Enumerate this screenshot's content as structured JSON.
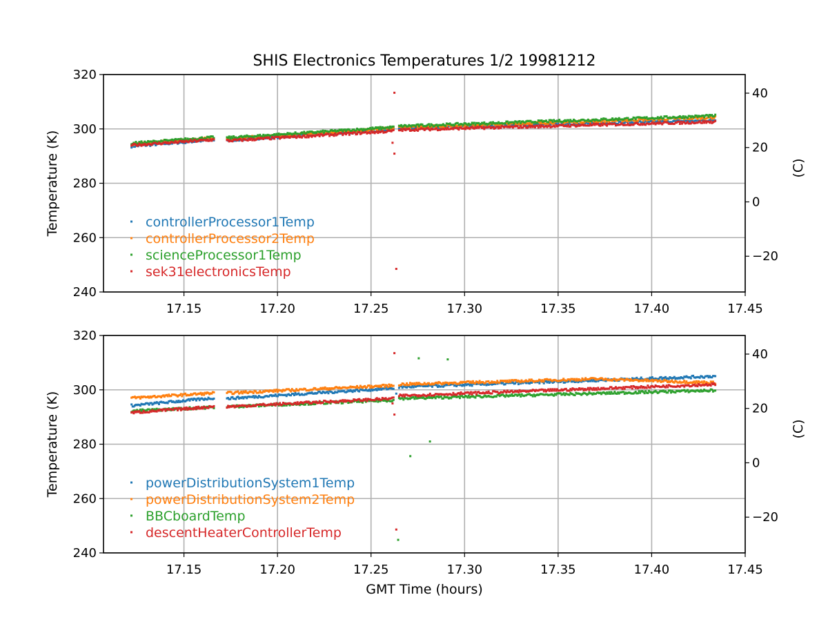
{
  "title": "SHIS Electronics Temperatures 1/2 19981212",
  "xlabel": "GMT Time (hours)",
  "chart_data": [
    {
      "type": "scatter",
      "ylabel": "Temperature (K)",
      "y2label": "(C)",
      "xlim": [
        17.107,
        17.45
      ],
      "ylim": [
        240,
        320
      ],
      "y2lim_offset_K_to_C": -273.15,
      "xticks": [
        "17.15",
        "17.20",
        "17.25",
        "17.30",
        "17.35",
        "17.40",
        "17.45"
      ],
      "xtick_values": [
        17.15,
        17.2,
        17.25,
        17.3,
        17.35,
        17.4,
        17.45
      ],
      "yticks": [
        "240",
        "260",
        "280",
        "300",
        "320"
      ],
      "ytick_values": [
        240,
        260,
        280,
        300,
        320
      ],
      "y2ticks": [
        "−20",
        "0",
        "20",
        "40"
      ],
      "y2tick_values": [
        -20,
        0,
        20,
        40
      ],
      "grid": true,
      "legend_position": "center-left",
      "series": [
        {
          "name": "controllerProcessor1Temp",
          "color": "#1f77b4",
          "segments": [
            [
              [
                17.122,
                293.6
              ],
              [
                17.166,
                296.0
              ]
            ],
            [
              [
                17.173,
                295.8
              ],
              [
                17.262,
                299.8
              ]
            ],
            [
              [
                17.265,
                300.2
              ],
              [
                17.434,
                303.2
              ]
            ]
          ],
          "outliers": []
        },
        {
          "name": "controllerProcessor2Temp",
          "color": "#ff7f0e",
          "segments": [
            [
              [
                17.122,
                294.4
              ],
              [
                17.166,
                296.6
              ]
            ],
            [
              [
                17.173,
                296.4
              ],
              [
                17.262,
                300.2
              ]
            ],
            [
              [
                17.265,
                300.6
              ],
              [
                17.434,
                304.2
              ]
            ]
          ],
          "outliers": []
        },
        {
          "name": "scienceProcessor1Temp",
          "color": "#2ca02c",
          "segments": [
            [
              [
                17.122,
                294.7
              ],
              [
                17.166,
                296.9
              ]
            ],
            [
              [
                17.173,
                296.7
              ],
              [
                17.262,
                300.6
              ]
            ],
            [
              [
                17.265,
                301.0
              ],
              [
                17.434,
                304.8
              ]
            ]
          ],
          "outliers": []
        },
        {
          "name": "sek31electronicsTemp",
          "color": "#d62728",
          "segments": [
            [
              [
                17.122,
                294.0
              ],
              [
                17.166,
                296.0
              ]
            ],
            [
              [
                17.173,
                295.6
              ],
              [
                17.262,
                299.2
              ]
            ],
            [
              [
                17.265,
                299.6
              ],
              [
                17.434,
                302.6
              ]
            ]
          ],
          "outliers": [
            [
              17.2625,
              313.3
            ],
            [
              17.2615,
              294.9
            ],
            [
              17.2625,
              290.9
            ],
            [
              17.2635,
              248.5
            ]
          ]
        }
      ]
    },
    {
      "type": "scatter",
      "ylabel": "Temperature (K)",
      "y2label": "(C)",
      "xlim": [
        17.107,
        17.45
      ],
      "ylim": [
        240,
        320
      ],
      "y2lim_offset_K_to_C": -273.15,
      "xticks": [
        "17.15",
        "17.20",
        "17.25",
        "17.30",
        "17.35",
        "17.40",
        "17.45"
      ],
      "xtick_values": [
        17.15,
        17.2,
        17.25,
        17.3,
        17.35,
        17.4,
        17.45
      ],
      "yticks": [
        "240",
        "260",
        "280",
        "300",
        "320"
      ],
      "ytick_values": [
        240,
        260,
        280,
        300,
        320
      ],
      "y2ticks": [
        "−20",
        "0",
        "20",
        "40"
      ],
      "y2tick_values": [
        -20,
        0,
        20,
        40
      ],
      "grid": true,
      "legend_position": "center-left",
      "series": [
        {
          "name": "powerDistributionSystem1Temp",
          "color": "#1f77b4",
          "segments": [
            [
              [
                17.122,
                294.2
              ],
              [
                17.166,
                297.0
              ]
            ],
            [
              [
                17.173,
                296.8
              ],
              [
                17.262,
                300.6
              ]
            ],
            [
              [
                17.265,
                301.0
              ],
              [
                17.434,
                305.0
              ]
            ]
          ],
          "outliers": [
            [
              17.2635,
              298.6
            ]
          ]
        },
        {
          "name": "powerDistributionSystem2Temp",
          "color": "#ff7f0e",
          "segments": [
            [
              [
                17.122,
                297.0
              ],
              [
                17.166,
                298.8
              ]
            ],
            [
              [
                17.173,
                298.8
              ],
              [
                17.262,
                301.6
              ]
            ],
            [
              [
                17.265,
                302.0
              ],
              [
                17.37,
                304.0
              ],
              [
                17.434,
                302.6
              ]
            ]
          ],
          "outliers": []
        },
        {
          "name": "BBCboardTemp",
          "color": "#2ca02c",
          "segments": [
            [
              [
                17.122,
                292.2
              ],
              [
                17.166,
                293.6
              ]
            ],
            [
              [
                17.173,
                293.8
              ],
              [
                17.262,
                296.2
              ]
            ],
            [
              [
                17.265,
                296.8
              ],
              [
                17.434,
                299.8
              ]
            ]
          ],
          "outliers": [
            [
              17.2755,
              311.6
            ],
            [
              17.291,
              311.2
            ],
            [
              17.2815,
              281.0
            ],
            [
              17.271,
              275.6
            ],
            [
              17.2645,
              244.8
            ]
          ]
        },
        {
          "name": "descentHeaterControllerTemp",
          "color": "#d62728",
          "segments": [
            [
              [
                17.122,
                291.6
              ],
              [
                17.166,
                293.8
              ]
            ],
            [
              [
                17.173,
                293.8
              ],
              [
                17.262,
                296.8
              ]
            ],
            [
              [
                17.265,
                297.8
              ],
              [
                17.434,
                302.0
              ]
            ]
          ],
          "outliers": [
            [
              17.2625,
              313.5
            ],
            [
              17.2615,
              295.0
            ],
            [
              17.2625,
              290.9
            ],
            [
              17.2635,
              248.6
            ]
          ]
        }
      ]
    }
  ]
}
